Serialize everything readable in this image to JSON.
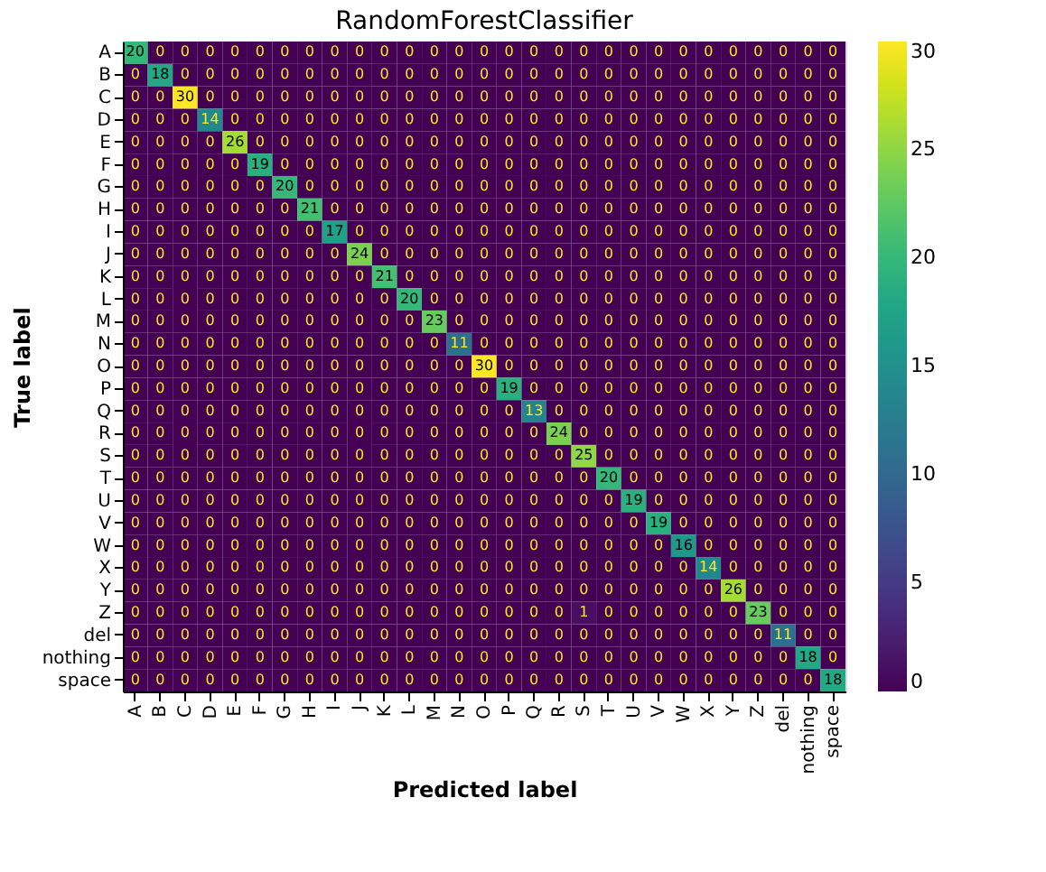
{
  "chart_data": {
    "type": "heatmap",
    "title": "RandomForestClassifier",
    "xlabel": "Predicted label",
    "ylabel": "True label",
    "categories": [
      "A",
      "B",
      "C",
      "D",
      "E",
      "F",
      "G",
      "H",
      "I",
      "J",
      "K",
      "L",
      "M",
      "N",
      "O",
      "P",
      "Q",
      "R",
      "S",
      "T",
      "U",
      "V",
      "W",
      "X",
      "Y",
      "Z",
      "del",
      "nothing",
      "space"
    ],
    "y_categories": [
      "A",
      "B",
      "C",
      "D",
      "E",
      "F",
      "G",
      "H",
      "I",
      "J",
      "K",
      "L",
      "M",
      "N",
      "O",
      "P",
      "Q",
      "R",
      "S",
      "T",
      "U",
      "V",
      "W",
      "X",
      "Y",
      "Z",
      "del",
      "nothing",
      "space"
    ],
    "cells": [
      [
        20,
        0,
        0,
        0,
        0,
        0,
        0,
        0,
        0,
        0,
        0,
        0,
        0,
        0,
        0,
        0,
        0,
        0,
        0,
        0,
        0,
        0,
        0,
        0,
        0,
        0,
        0,
        0,
        0
      ],
      [
        0,
        18,
        0,
        0,
        0,
        0,
        0,
        0,
        0,
        0,
        0,
        0,
        0,
        0,
        0,
        0,
        0,
        0,
        0,
        0,
        0,
        0,
        0,
        0,
        0,
        0,
        0,
        0,
        0
      ],
      [
        0,
        0,
        30,
        0,
        0,
        0,
        0,
        0,
        0,
        0,
        0,
        0,
        0,
        0,
        0,
        0,
        0,
        0,
        0,
        0,
        0,
        0,
        0,
        0,
        0,
        0,
        0,
        0,
        0
      ],
      [
        0,
        0,
        0,
        14,
        0,
        0,
        0,
        0,
        0,
        0,
        0,
        0,
        0,
        0,
        0,
        0,
        0,
        0,
        0,
        0,
        0,
        0,
        0,
        0,
        0,
        0,
        0,
        0,
        0
      ],
      [
        0,
        0,
        0,
        0,
        26,
        0,
        0,
        0,
        0,
        0,
        0,
        0,
        0,
        0,
        0,
        0,
        0,
        0,
        0,
        0,
        0,
        0,
        0,
        0,
        0,
        0,
        0,
        0,
        0
      ],
      [
        0,
        0,
        0,
        0,
        0,
        19,
        0,
        0,
        0,
        0,
        0,
        0,
        0,
        0,
        0,
        0,
        0,
        0,
        0,
        0,
        0,
        0,
        0,
        0,
        0,
        0,
        0,
        0,
        0
      ],
      [
        0,
        0,
        0,
        0,
        0,
        0,
        20,
        0,
        0,
        0,
        0,
        0,
        0,
        0,
        0,
        0,
        0,
        0,
        0,
        0,
        0,
        0,
        0,
        0,
        0,
        0,
        0,
        0,
        0
      ],
      [
        0,
        0,
        0,
        0,
        0,
        0,
        0,
        21,
        0,
        0,
        0,
        0,
        0,
        0,
        0,
        0,
        0,
        0,
        0,
        0,
        0,
        0,
        0,
        0,
        0,
        0,
        0,
        0,
        0
      ],
      [
        0,
        0,
        0,
        0,
        0,
        0,
        0,
        0,
        17,
        0,
        0,
        0,
        0,
        0,
        0,
        0,
        0,
        0,
        0,
        0,
        0,
        0,
        0,
        0,
        0,
        0,
        0,
        0,
        0
      ],
      [
        0,
        0,
        0,
        0,
        0,
        0,
        0,
        0,
        0,
        24,
        0,
        0,
        0,
        0,
        0,
        0,
        0,
        0,
        0,
        0,
        0,
        0,
        0,
        0,
        0,
        0,
        0,
        0,
        0
      ],
      [
        0,
        0,
        0,
        0,
        0,
        0,
        0,
        0,
        0,
        0,
        21,
        0,
        0,
        0,
        0,
        0,
        0,
        0,
        0,
        0,
        0,
        0,
        0,
        0,
        0,
        0,
        0,
        0,
        0
      ],
      [
        0,
        0,
        0,
        0,
        0,
        0,
        0,
        0,
        0,
        0,
        0,
        20,
        0,
        0,
        0,
        0,
        0,
        0,
        0,
        0,
        0,
        0,
        0,
        0,
        0,
        0,
        0,
        0,
        0
      ],
      [
        0,
        0,
        0,
        0,
        0,
        0,
        0,
        0,
        0,
        0,
        0,
        0,
        23,
        0,
        0,
        0,
        0,
        0,
        0,
        0,
        0,
        0,
        0,
        0,
        0,
        0,
        0,
        0,
        0
      ],
      [
        0,
        0,
        0,
        0,
        0,
        0,
        0,
        0,
        0,
        0,
        0,
        0,
        0,
        11,
        0,
        0,
        0,
        0,
        0,
        0,
        0,
        0,
        0,
        0,
        0,
        0,
        0,
        0,
        0
      ],
      [
        0,
        0,
        0,
        0,
        0,
        0,
        0,
        0,
        0,
        0,
        0,
        0,
        0,
        0,
        30,
        0,
        0,
        0,
        0,
        0,
        0,
        0,
        0,
        0,
        0,
        0,
        0,
        0,
        0
      ],
      [
        0,
        0,
        0,
        0,
        0,
        0,
        0,
        0,
        0,
        0,
        0,
        0,
        0,
        0,
        0,
        19,
        0,
        0,
        0,
        0,
        0,
        0,
        0,
        0,
        0,
        0,
        0,
        0,
        0
      ],
      [
        0,
        0,
        0,
        0,
        0,
        0,
        0,
        0,
        0,
        0,
        0,
        0,
        0,
        0,
        0,
        0,
        13,
        0,
        0,
        0,
        0,
        0,
        0,
        0,
        0,
        0,
        0,
        0,
        0
      ],
      [
        0,
        0,
        0,
        0,
        0,
        0,
        0,
        0,
        0,
        0,
        0,
        0,
        0,
        0,
        0,
        0,
        0,
        24,
        0,
        0,
        0,
        0,
        0,
        0,
        0,
        0,
        0,
        0,
        0
      ],
      [
        0,
        0,
        0,
        0,
        0,
        0,
        0,
        0,
        0,
        0,
        0,
        0,
        0,
        0,
        0,
        0,
        0,
        0,
        25,
        0,
        0,
        0,
        0,
        0,
        0,
        0,
        0,
        0,
        0
      ],
      [
        0,
        0,
        0,
        0,
        0,
        0,
        0,
        0,
        0,
        0,
        0,
        0,
        0,
        0,
        0,
        0,
        0,
        0,
        0,
        20,
        0,
        0,
        0,
        0,
        0,
        0,
        0,
        0,
        0
      ],
      [
        0,
        0,
        0,
        0,
        0,
        0,
        0,
        0,
        0,
        0,
        0,
        0,
        0,
        0,
        0,
        0,
        0,
        0,
        0,
        0,
        19,
        0,
        0,
        0,
        0,
        0,
        0,
        0,
        0
      ],
      [
        0,
        0,
        0,
        0,
        0,
        0,
        0,
        0,
        0,
        0,
        0,
        0,
        0,
        0,
        0,
        0,
        0,
        0,
        0,
        0,
        0,
        19,
        0,
        0,
        0,
        0,
        0,
        0,
        0
      ],
      [
        0,
        0,
        0,
        0,
        0,
        0,
        0,
        0,
        0,
        0,
        0,
        0,
        0,
        0,
        0,
        0,
        0,
        0,
        0,
        0,
        0,
        0,
        16,
        0,
        0,
        0,
        0,
        0,
        0
      ],
      [
        0,
        0,
        0,
        0,
        0,
        0,
        0,
        0,
        0,
        0,
        0,
        0,
        0,
        0,
        0,
        0,
        0,
        0,
        0,
        0,
        0,
        0,
        0,
        14,
        0,
        0,
        0,
        0,
        0
      ],
      [
        0,
        0,
        0,
        0,
        0,
        0,
        0,
        0,
        0,
        0,
        0,
        0,
        0,
        0,
        0,
        0,
        0,
        0,
        0,
        0,
        0,
        0,
        0,
        0,
        26,
        0,
        0,
        0,
        0
      ],
      [
        0,
        0,
        0,
        0,
        0,
        0,
        0,
        0,
        0,
        0,
        0,
        0,
        0,
        0,
        0,
        0,
        0,
        0,
        1,
        0,
        0,
        0,
        0,
        0,
        0,
        23,
        0,
        0,
        0
      ],
      [
        0,
        0,
        0,
        0,
        0,
        0,
        0,
        0,
        0,
        0,
        0,
        0,
        0,
        0,
        0,
        0,
        0,
        0,
        0,
        0,
        0,
        0,
        0,
        0,
        0,
        0,
        11,
        0,
        0
      ],
      [
        0,
        0,
        0,
        0,
        0,
        0,
        0,
        0,
        0,
        0,
        0,
        0,
        0,
        0,
        0,
        0,
        0,
        0,
        0,
        0,
        0,
        0,
        0,
        0,
        0,
        0,
        0,
        18,
        0
      ],
      [
        0,
        0,
        0,
        0,
        0,
        0,
        0,
        0,
        0,
        0,
        0,
        0,
        0,
        0,
        0,
        0,
        0,
        0,
        0,
        0,
        0,
        0,
        0,
        0,
        0,
        0,
        0,
        0,
        18
      ]
    ],
    "clim": [
      0,
      30
    ],
    "cticks": [
      0,
      5,
      10,
      15,
      20,
      25,
      30
    ],
    "data_labels": true
  }
}
